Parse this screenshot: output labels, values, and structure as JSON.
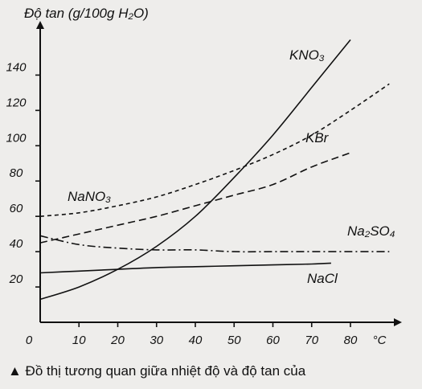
{
  "chart_data": {
    "type": "line",
    "title": "Độ tan (g/100g H₂O)",
    "xlabel": "°C",
    "ylabel": "",
    "xlim": [
      0,
      85
    ],
    "ylim": [
      0,
      160
    ],
    "x_ticks": [
      0,
      10,
      20,
      30,
      40,
      50,
      60,
      70,
      80
    ],
    "y_ticks": [
      20,
      40,
      60,
      80,
      100,
      120,
      140
    ],
    "grid": false,
    "legend": "inline labels",
    "series": [
      {
        "name": "KNO₃",
        "style": "solid",
        "x": [
          0,
          10,
          20,
          30,
          40,
          50,
          60,
          70,
          80
        ],
        "y": [
          13,
          20,
          30,
          43,
          60,
          82,
          106,
          133,
          160
        ]
      },
      {
        "name": "KBr",
        "style": "dashed",
        "x": [
          0,
          10,
          20,
          30,
          40,
          50,
          60,
          70,
          80
        ],
        "y": [
          45,
          50,
          55,
          60,
          66,
          72,
          78,
          88,
          96
        ]
      },
      {
        "name": "NaNO₃",
        "style": "short-dash",
        "x": [
          0,
          10,
          20,
          30,
          40,
          50,
          60,
          70,
          80,
          90
        ],
        "y": [
          60,
          62,
          66,
          71,
          78,
          86,
          95,
          106,
          120,
          135
        ]
      },
      {
        "name": "Na₂SO₄",
        "style": "dash-dot",
        "x": [
          0,
          10,
          20,
          30,
          40,
          50,
          60,
          70,
          80,
          90
        ],
        "y": [
          49,
          44,
          42,
          41,
          41,
          40,
          40,
          40,
          40,
          40
        ]
      },
      {
        "name": "NaCl",
        "style": "solid",
        "x": [
          0,
          10,
          20,
          30,
          40,
          50,
          60,
          70,
          75
        ],
        "y": [
          28,
          29,
          30,
          31,
          31.5,
          32,
          32.5,
          33,
          33.5
        ]
      }
    ]
  },
  "caption": "▲ Đồ thị tương quan giữa nhiệt độ và độ tan của"
}
